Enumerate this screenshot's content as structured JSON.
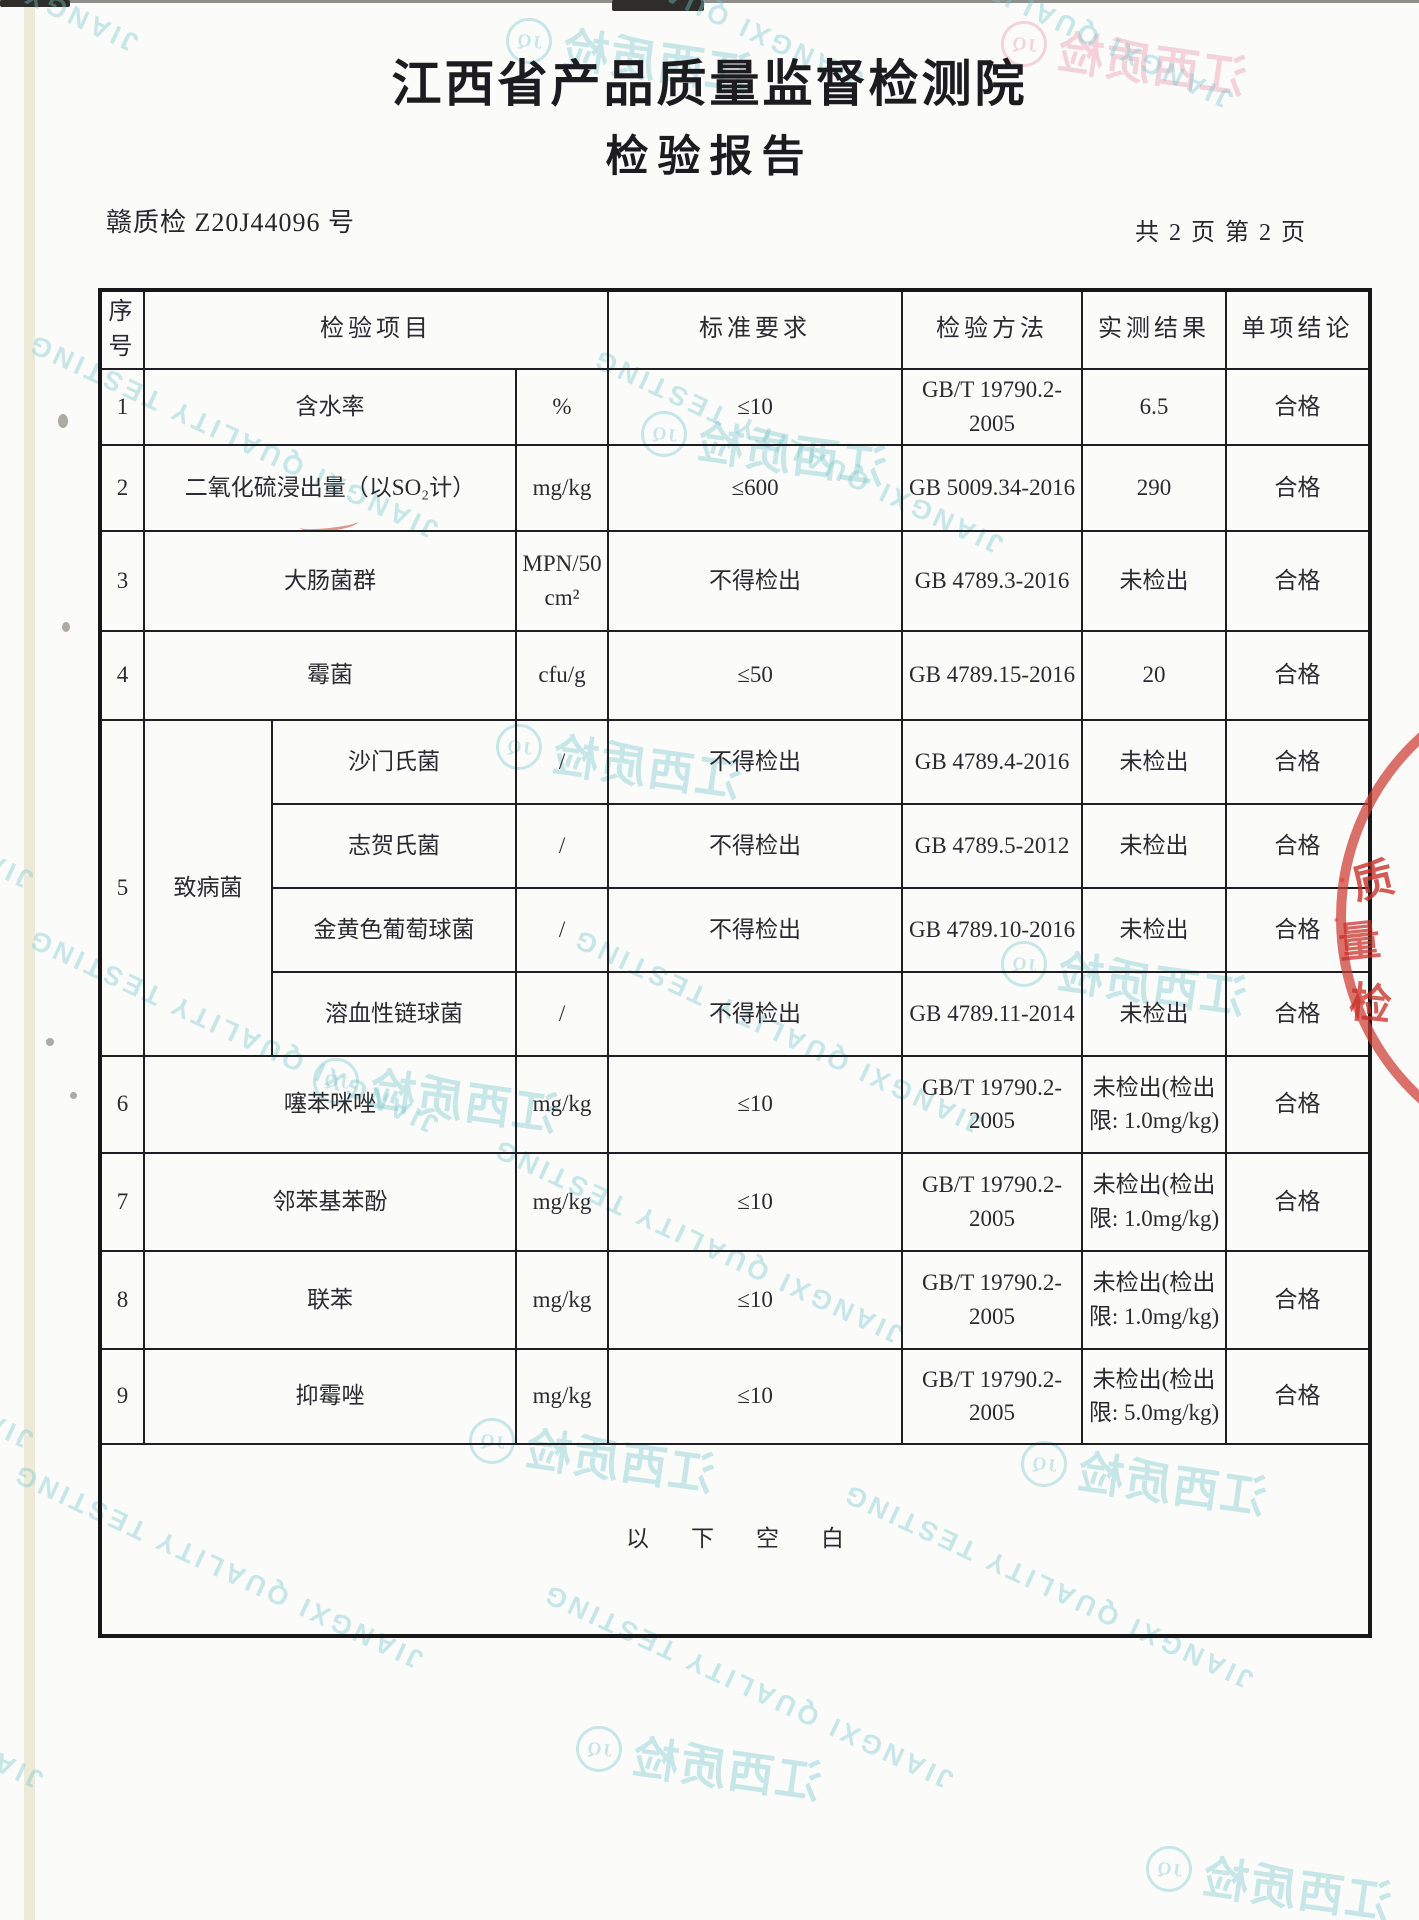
{
  "header": {
    "org_title": "江西省产品质量监督检测院",
    "report_title": "检验报告",
    "report_no": "赣质检 Z20J44096 号",
    "page_info": "共 2 页 第 2 页"
  },
  "watermark": {
    "latin": "JIANGXI QUALITY TESTING",
    "cjk": "江西质检",
    "color": "#7ec5ca"
  },
  "seal": {
    "color": "#cd3a32",
    "fragments": [
      "质",
      "量",
      "检"
    ]
  },
  "table": {
    "col_headers": [
      "序号",
      "检验项目",
      "标准要求",
      "检验方法",
      "实测结果",
      "单项结论"
    ],
    "rows": [
      {
        "no": "1",
        "item": "含水率",
        "unit": "%",
        "standard": "≤10",
        "method": "GB/T 19790.2-2005",
        "result": "6.5",
        "conclusion": "合格"
      },
      {
        "no": "2",
        "item": "二氧化硫浸出量（以SO₂计）",
        "unit": "mg/kg",
        "standard": "≤600",
        "method": "GB 5009.34-2016",
        "result": "290",
        "conclusion": "合格"
      },
      {
        "no": "3",
        "item": "大肠菌群",
        "unit": "MPN/50 cm²",
        "standard": "不得检出",
        "method": "GB 4789.3-2016",
        "result": "未检出",
        "conclusion": "合格"
      },
      {
        "no": "4",
        "item": "霉菌",
        "unit": "cfu/g",
        "standard": "≤50",
        "method": "GB 4789.15-2016",
        "result": "20",
        "conclusion": "合格"
      },
      {
        "no": "5",
        "group": "致病菌",
        "item": "沙门氏菌",
        "unit": "/",
        "standard": "不得检出",
        "method": "GB 4789.4-2016",
        "result": "未检出",
        "conclusion": "合格"
      },
      {
        "item": "志贺氏菌",
        "unit": "/",
        "standard": "不得检出",
        "method": "GB 4789.5-2012",
        "result": "未检出",
        "conclusion": "合格"
      },
      {
        "item": "金黄色葡萄球菌",
        "unit": "/",
        "standard": "不得检出",
        "method": "GB 4789.10-2016",
        "result": "未检出",
        "conclusion": "合格"
      },
      {
        "item": "溶血性链球菌",
        "unit": "/",
        "standard": "不得检出",
        "method": "GB 4789.11-2014",
        "result": "未检出",
        "conclusion": "合格"
      },
      {
        "no": "6",
        "item": "噻苯咪唑",
        "unit": "mg/kg",
        "standard": "≤10",
        "method": "GB/T 19790.2-2005",
        "result": "未检出(检出限: 1.0mg/kg)",
        "conclusion": "合格"
      },
      {
        "no": "7",
        "item": "邻苯基苯酚",
        "unit": "mg/kg",
        "standard": "≤10",
        "method": "GB/T 19790.2-2005",
        "result": "未检出(检出限: 1.0mg/kg)",
        "conclusion": "合格"
      },
      {
        "no": "8",
        "item": "联苯",
        "unit": "mg/kg",
        "standard": "≤10",
        "method": "GB/T 19790.2-2005",
        "result": "未检出(检出限: 1.0mg/kg)",
        "conclusion": "合格"
      },
      {
        "no": "9",
        "item": "抑霉唑",
        "unit": "mg/kg",
        "standard": "≤10",
        "method": "GB/T 19790.2-2005",
        "result": "未检出(检出限: 5.0mg/kg)",
        "conclusion": "合格"
      }
    ],
    "footer_note": "以下空白"
  }
}
